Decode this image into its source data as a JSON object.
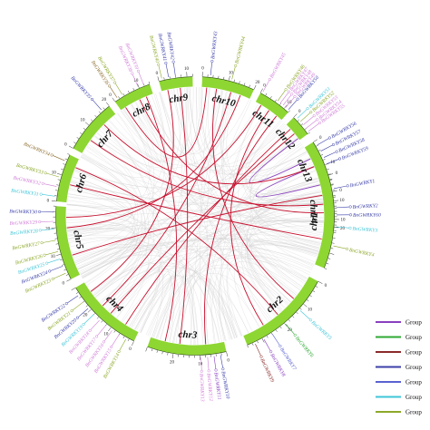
{
  "chromosomes": [
    "chr1",
    "chr2",
    "chr3",
    "chr4",
    "chr5",
    "chr6",
    "chr7",
    "chr8",
    "chr9",
    "chr10",
    "chr11",
    "chr12",
    "chr13",
    "chr14"
  ],
  "tick_labels": [
    "0",
    "10",
    "20"
  ],
  "legend": [
    {
      "label": "Group",
      "color": "#8a3fbf"
    },
    {
      "label": "Group",
      "color": "#2ea832"
    },
    {
      "label": "Group",
      "color": "#8b2a2a"
    },
    {
      "label": "Group",
      "color": "#3a3fa8"
    },
    {
      "label": "Group",
      "color": "#5a62d0"
    },
    {
      "label": "Group",
      "color": "#3fc6d8"
    },
    {
      "label": "Group",
      "color": "#8ca82a"
    }
  ],
  "genes": [
    {
      "name": "BnGWRKY1",
      "chr": "chr1",
      "pos": 0.15,
      "color": "#3a3fa8"
    },
    {
      "name": "BnGWRKY2",
      "chr": "chr1",
      "pos": 0.35,
      "color": "#3a3fa8"
    },
    {
      "name": "BnGWRKY3",
      "chr": "chr1",
      "pos": 0.55,
      "color": "#3fc6d8"
    },
    {
      "name": "BnGWRKY4",
      "chr": "chr1",
      "pos": 0.75,
      "color": "#8ca82a"
    },
    {
      "name": "BnGWRKY5",
      "chr": "chr2",
      "pos": 0.35,
      "color": "#3fc6d8"
    },
    {
      "name": "BnGWRKY6",
      "chr": "chr2",
      "pos": 0.55,
      "color": "#2ea832"
    },
    {
      "name": "BnGWRKY7",
      "chr": "chr2",
      "pos": 0.72,
      "color": "#5a62d0"
    },
    {
      "name": "BnGWRKY8",
      "chr": "chr2",
      "pos": 0.82,
      "color": "#8a3fbf"
    },
    {
      "name": "BnGWRKY9",
      "chr": "chr2",
      "pos": 0.92,
      "color": "#8b2a2a"
    },
    {
      "name": "BnGWRKY10",
      "chr": "chr3",
      "pos": 0.08,
      "color": "#3a3fa8"
    },
    {
      "name": "BnGWRKY11",
      "chr": "chr3",
      "pos": 0.16,
      "color": "#8a3fbf"
    },
    {
      "name": "BnGWRKY12",
      "chr": "chr3",
      "pos": 0.24,
      "color": "#d07fd8"
    },
    {
      "name": "BnGWRKY13",
      "chr": "chr3",
      "pos": 0.32,
      "color": "#d07fd8"
    },
    {
      "name": "BnGWRKY14",
      "chr": "chr4",
      "pos": 0.1,
      "color": "#8ca82a"
    },
    {
      "name": "BnGWRKY15",
      "chr": "chr4",
      "pos": 0.2,
      "color": "#d07fd8"
    },
    {
      "name": "BnGWRKY16",
      "chr": "chr4",
      "pos": 0.3,
      "color": "#d07fd8"
    },
    {
      "name": "BnGWRKY17",
      "chr": "chr4",
      "pos": 0.4,
      "color": "#d07fd8"
    },
    {
      "name": "BnGWRKY18",
      "chr": "chr4",
      "pos": 0.5,
      "color": "#d07fd8"
    },
    {
      "name": "BnGWRKY19",
      "chr": "chr4",
      "pos": 0.6,
      "color": "#3fc6d8"
    },
    {
      "name": "BnGWRKY20",
      "chr": "chr4",
      "pos": 0.7,
      "color": "#3a3fa8"
    },
    {
      "name": "BnGWRKY21",
      "chr": "chr4",
      "pos": 0.8,
      "color": "#8ca82a"
    },
    {
      "name": "BnGWRKY22",
      "chr": "chr4",
      "pos": 0.9,
      "color": "#3a3fa8"
    },
    {
      "name": "BnGWRKY23",
      "chr": "chr5",
      "pos": 0.1,
      "color": "#8ca82a"
    },
    {
      "name": "BnGWRKY24",
      "chr": "chr5",
      "pos": 0.2,
      "color": "#3a3fa8"
    },
    {
      "name": "BnGWRKY25",
      "chr": "chr5",
      "pos": 0.3,
      "color": "#3fc6d8"
    },
    {
      "name": "BnGWRKY26",
      "chr": "chr5",
      "pos": 0.4,
      "color": "#8ca82a"
    },
    {
      "name": "BnGWRKY27",
      "chr": "chr5",
      "pos": 0.55,
      "color": "#8ca82a"
    },
    {
      "name": "BnGWRKY28",
      "chr": "chr5",
      "pos": 0.7,
      "color": "#3fc6d8"
    },
    {
      "name": "BnGWRKY29",
      "chr": "chr5",
      "pos": 0.8,
      "color": "#d07fd8"
    },
    {
      "name": "BnGWRKY30",
      "chr": "chr5",
      "pos": 0.92,
      "color": "#3a3fa8"
    },
    {
      "name": "BnGWRKY31",
      "chr": "chr6",
      "pos": 0.1,
      "color": "#3fc6d8"
    },
    {
      "name": "BnGWRKY32",
      "chr": "chr6",
      "pos": 0.3,
      "color": "#d07fd8"
    },
    {
      "name": "BnGWRKY33",
      "chr": "chr6",
      "pos": 0.5,
      "color": "#8ca82a"
    },
    {
      "name": "BnGWRKY34",
      "chr": "chr6",
      "pos": 0.85,
      "color": "#8b6a2a"
    },
    {
      "name": "BnGWRKY35",
      "chr": "chr7",
      "pos": 0.85,
      "color": "#3a3fa8"
    },
    {
      "name": "BnGWRKY36",
      "chr": "chr8",
      "pos": 0.1,
      "color": "#8b6a2a"
    },
    {
      "name": "BnGWRKY37",
      "chr": "chr8",
      "pos": 0.25,
      "color": "#8ca82a"
    },
    {
      "name": "BnGWRKY38",
      "chr": "chr8",
      "pos": 0.7,
      "color": "#d07fd8"
    },
    {
      "name": "BnGWRKY39",
      "chr": "chr8",
      "pos": 0.85,
      "color": "#d07fd8"
    },
    {
      "name": "BnGWRKY40",
      "chr": "chr9",
      "pos": 0.1,
      "color": "#8ca82a"
    },
    {
      "name": "BnGWRKY41",
      "chr": "chr9",
      "pos": 0.3,
      "color": "#3a3fa8"
    },
    {
      "name": "BnGWRKY42",
      "chr": "chr9",
      "pos": 0.5,
      "color": "#3a3fa8"
    },
    {
      "name": "BnGWRKY43",
      "chr": "chr10",
      "pos": 0.15,
      "color": "#3a3fa8"
    },
    {
      "name": "BnGWRKY44",
      "chr": "chr10",
      "pos": 0.55,
      "color": "#8ca82a"
    },
    {
      "name": "BnGWRKY45",
      "chr": "chr11",
      "pos": 0.05,
      "color": "#d07fd8"
    },
    {
      "name": "BnGWRKY46",
      "chr": "chr11",
      "pos": 0.55,
      "color": "#8ca82a"
    },
    {
      "name": "BnGWRKY47",
      "chr": "chr11",
      "pos": 0.65,
      "color": "#d07fd8"
    },
    {
      "name": "BnGWRKY48",
      "chr": "chr11",
      "pos": 0.75,
      "color": "#d07fd8"
    },
    {
      "name": "BnGWRKY49",
      "chr": "chr11",
      "pos": 0.85,
      "color": "#d07fd8"
    },
    {
      "name": "BnGWRKY50",
      "chr": "chr11",
      "pos": 0.95,
      "color": "#3a3fa8"
    },
    {
      "name": "BnGWRKY51",
      "chr": "chr12",
      "pos": 0.15,
      "color": "#3fc6d8"
    },
    {
      "name": "BnGWRKY52",
      "chr": "chr12",
      "pos": 0.35,
      "color": "#8ca82a"
    },
    {
      "name": "BnGWRKY53",
      "chr": "chr12",
      "pos": 0.55,
      "color": "#d07fd8"
    },
    {
      "name": "BnGWRKY54",
      "chr": "chr12",
      "pos": 0.75,
      "color": "#d07fd8"
    },
    {
      "name": "BnGWRKY55",
      "chr": "chr12",
      "pos": 0.92,
      "color": "#d07fd8"
    },
    {
      "name": "BnGWRKY56",
      "chr": "chr13",
      "pos": 0.1,
      "color": "#3a3fa8"
    },
    {
      "name": "BnGWRKY57",
      "chr": "chr13",
      "pos": 0.25,
      "color": "#3a3fa8"
    },
    {
      "name": "BnGWRKY58",
      "chr": "chr13",
      "pos": 0.4,
      "color": "#3a3fa8"
    },
    {
      "name": "BnGWRKY59",
      "chr": "chr13",
      "pos": 0.55,
      "color": "#3a3fa8"
    },
    {
      "name": "BnGWRKY60",
      "chr": "chr14",
      "pos": 0.6,
      "color": "#3a3fa8"
    }
  ],
  "links": [
    {
      "a": "chr13",
      "ap": 0.5,
      "b": "chr13",
      "bp": 0.95,
      "color": "#8a3fbf"
    },
    {
      "a": "chr13",
      "ap": 0.3,
      "b": "chr12",
      "bp": 0.9,
      "color": "#8a3fbf"
    },
    {
      "a": "chr10",
      "ap": 0.6,
      "b": "chr4",
      "bp": 0.6,
      "color": "#c8102e"
    },
    {
      "a": "chr10",
      "ap": 0.3,
      "b": "chr2",
      "bp": 0.3,
      "color": "#c8102e"
    },
    {
      "a": "chr11",
      "ap": 0.5,
      "b": "chr2",
      "bp": 0.75,
      "color": "#c8102e"
    },
    {
      "a": "chr11",
      "ap": 0.8,
      "b": "chr3",
      "bp": 0.25,
      "color": "#c8102e"
    },
    {
      "a": "chr9",
      "ap": 0.6,
      "b": "chr3",
      "bp": 0.6,
      "color": "#c8102e"
    },
    {
      "a": "chr8",
      "ap": 0.15,
      "b": "chr10",
      "bp": 0.1,
      "color": "#c8102e"
    },
    {
      "a": "chr8",
      "ap": 0.6,
      "b": "chr1",
      "bp": 0.4,
      "color": "#c8102e"
    },
    {
      "a": "chr7",
      "ap": 0.3,
      "b": "chr14",
      "bp": 0.3,
      "color": "#c8102e"
    },
    {
      "a": "chr7",
      "ap": 0.7,
      "b": "chr13",
      "bp": 0.5,
      "color": "#c8102e"
    },
    {
      "a": "chr6",
      "ap": 0.4,
      "b": "chr1",
      "bp": 0.7,
      "color": "#c8102e"
    },
    {
      "a": "chr5",
      "ap": 0.3,
      "b": "chr1",
      "bp": 0.2,
      "color": "#c8102e"
    },
    {
      "a": "chr5",
      "ap": 0.7,
      "b": "chr10",
      "bp": 0.8,
      "color": "#c8102e"
    },
    {
      "a": "chr4",
      "ap": 0.2,
      "b": "chr12",
      "bp": 0.3,
      "color": "#c8102e"
    },
    {
      "a": "chr4",
      "ap": 0.85,
      "b": "chr9",
      "bp": 0.2,
      "color": "#c8102e"
    },
    {
      "a": "chr3",
      "ap": 0.8,
      "b": "chr8",
      "bp": 0.8,
      "color": "#c8102e"
    },
    {
      "a": "chr2",
      "ap": 0.55,
      "b": "chr6",
      "bp": 0.8,
      "color": "#c8102e"
    },
    {
      "a": "chr11",
      "ap": 0.2,
      "b": "chr5",
      "bp": 0.85,
      "color": "#c8102e"
    },
    {
      "a": "chr12",
      "ap": 0.6,
      "b": "chr4",
      "bp": 0.45,
      "color": "#c8102e"
    }
  ]
}
